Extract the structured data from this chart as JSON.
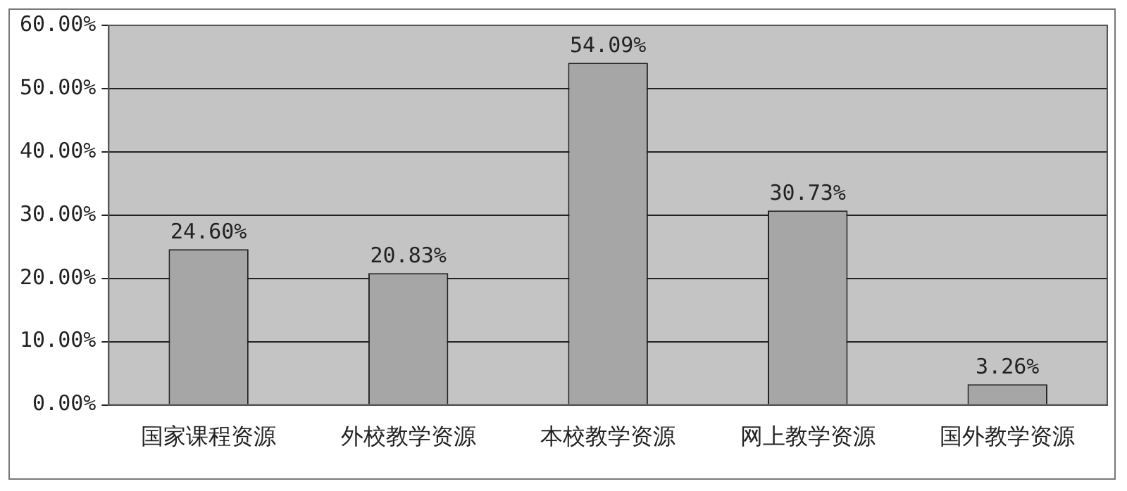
{
  "chart_data": {
    "type": "bar",
    "categories": [
      "国家课程资源",
      "外校教学资源",
      "本校教学资源",
      "网上教学资源",
      "国外教学资源"
    ],
    "values": [
      24.6,
      20.83,
      54.09,
      30.73,
      3.26
    ],
    "value_labels": [
      "24.60%",
      "20.83%",
      "54.09%",
      "30.73%",
      "3.26%"
    ],
    "color": "#a6a6a6",
    "ylim": [
      0,
      60
    ],
    "yticks": [
      {
        "value": 0,
        "label": "0.00%"
      },
      {
        "value": 10,
        "label": "10.00%"
      },
      {
        "value": 20,
        "label": "20.00%"
      },
      {
        "value": 30,
        "label": "30.00%"
      },
      {
        "value": 40,
        "label": "40.00%"
      },
      {
        "value": 50,
        "label": "50.00%"
      },
      {
        "value": 60,
        "label": "60.00%"
      }
    ],
    "grid": "y"
  }
}
